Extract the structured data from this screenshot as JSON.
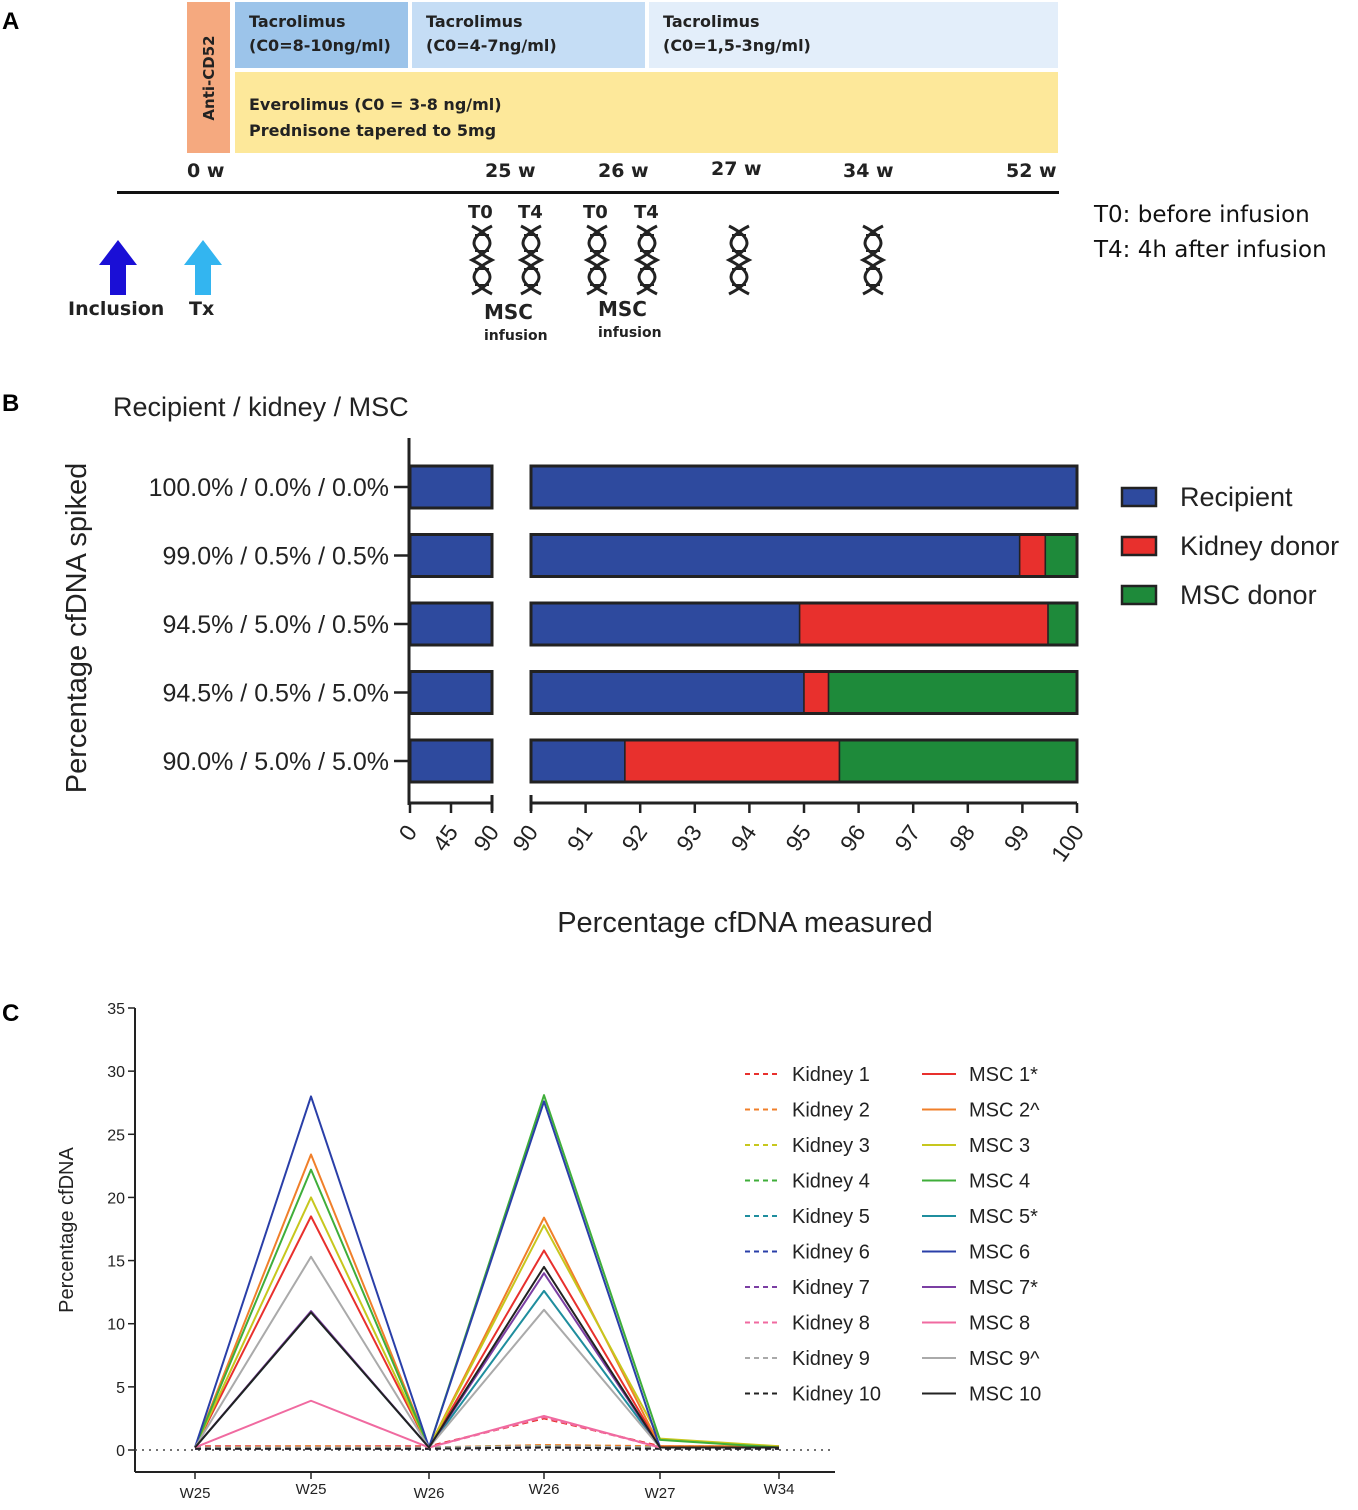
{
  "panels": {
    "a": "A",
    "b": "B",
    "c": "C"
  },
  "timeline": {
    "anti_cd52": "Anti-CD52",
    "tac1_line1": "Tacrolimus",
    "tac1_line2": "(C0=8-10ng/ml)",
    "tac2_line1": "Tacrolimus",
    "tac2_line2": "(C0=4-7ng/ml)",
    "tac3_line1": "Tacrolimus",
    "tac3_line2": "(C0=1,5-3ng/ml)",
    "evero_line1": "Everolimus (C0 = 3-8 ng/ml)",
    "evero_line2": "Prednisone tapered to 5mg",
    "weeks": [
      "0 w",
      "25 w",
      "26 w",
      "27 w",
      "34 w",
      "52 w"
    ],
    "t0": "T0",
    "t4": "T4",
    "msc": "MSC",
    "infusion": "infusion",
    "inclusion": "Inclusion",
    "tx": "Tx",
    "legend_t0": "T0: before infusion",
    "legend_t4": "T4: 4h after infusion",
    "colors": {
      "anti": "#f5a97f",
      "tac1": "#9cc4ea",
      "tac2": "#c5ddf5",
      "tac3": "#e3eefa",
      "evero": "#fde89a",
      "inclusion_arrow": "#1a0fd6",
      "tx_arrow": "#33b5f0"
    }
  },
  "chart_data": [
    {
      "type": "bar",
      "orientation": "horizontal-stacked",
      "header": "Recipient / kidney / MSC",
      "ylabel": "Percentage cfDNA spiked",
      "xlabel": "Percentage cfDNA measured",
      "categories": [
        "100.0% / 0.0% / 0.0%",
        "99.0% / 0.5% / 0.5%",
        "94.5% / 5.0% / 0.5%",
        "94.5% / 0.5% / 5.0%",
        "90.0% / 5.0% / 5.0%"
      ],
      "series": [
        {
          "name": "Recipient",
          "color": "#2e4a9e",
          "values": [
            100.0,
            98.95,
            94.92,
            95.0,
            91.72
          ]
        },
        {
          "name": "Kidney donor",
          "color": "#e8302d",
          "values": [
            0.0,
            0.47,
            4.55,
            0.45,
            3.93
          ]
        },
        {
          "name": "MSC donor",
          "color": "#1e8a3a",
          "values": [
            0.0,
            0.58,
            0.53,
            4.55,
            4.35
          ]
        }
      ],
      "axis_break": {
        "left_range": [
          0,
          90
        ],
        "right_range": [
          90,
          100
        ]
      },
      "left_ticks": [
        "0",
        "45",
        "90"
      ],
      "right_ticks": [
        "90",
        "91",
        "92",
        "93",
        "94",
        "95",
        "96",
        "97",
        "98",
        "99",
        "100"
      ]
    },
    {
      "type": "line",
      "ylabel": "Percentage cfDNA",
      "categories": [
        "W25",
        "W25",
        "W26",
        "W26",
        "W27",
        "W34"
      ],
      "ylim": [
        0,
        35
      ],
      "yticks": [
        "0",
        "5",
        "10",
        "15",
        "20",
        "25",
        "30",
        "35"
      ],
      "series": [
        {
          "name": "Kidney 1",
          "style": "dashed",
          "color": "#e8302d",
          "values": [
            0.3,
            0.3,
            0.3,
            2.5,
            0.3,
            0.3
          ]
        },
        {
          "name": "Kidney 2",
          "style": "dashed",
          "color": "#f07f2a",
          "values": [
            0.2,
            0.3,
            0.2,
            0.4,
            0.3,
            0.3
          ]
        },
        {
          "name": "Kidney 3",
          "style": "dashed",
          "color": "#c7c71e",
          "values": [
            0.2,
            0.2,
            0.2,
            0.3,
            0.2,
            0.2
          ]
        },
        {
          "name": "Kidney 4",
          "style": "dashed",
          "color": "#3fae3a",
          "values": [
            0.2,
            0.2,
            0.2,
            0.3,
            0.2,
            0.2
          ]
        },
        {
          "name": "Kidney 5",
          "style": "dashed",
          "color": "#1f8e9e",
          "values": [
            0.2,
            0.2,
            0.2,
            0.2,
            0.2,
            0.2
          ]
        },
        {
          "name": "Kidney 6",
          "style": "dashed",
          "color": "#2a3fa8",
          "values": [
            0.1,
            0.2,
            0.1,
            0.2,
            0.2,
            0.1
          ]
        },
        {
          "name": "Kidney 7",
          "style": "dashed",
          "color": "#7b3fa3",
          "values": [
            0.1,
            0.1,
            0.1,
            0.2,
            0.1,
            0.1
          ]
        },
        {
          "name": "Kidney 8",
          "style": "dashed",
          "color": "#f06aa0",
          "values": [
            0.2,
            0.2,
            0.2,
            2.6,
            0.2,
            0.2
          ]
        },
        {
          "name": "Kidney 9",
          "style": "dashed",
          "color": "#aaaaaa",
          "values": [
            0.2,
            0.2,
            0.2,
            0.3,
            0.2,
            0.2
          ]
        },
        {
          "name": "Kidney 10",
          "style": "dashed",
          "color": "#222222",
          "values": [
            0.1,
            0.1,
            0.1,
            0.2,
            0.1,
            0.1
          ]
        },
        {
          "name": "MSC 1*",
          "style": "solid",
          "color": "#e8302d",
          "values": [
            0.2,
            18.5,
            0.2,
            15.8,
            0.3,
            0.2
          ]
        },
        {
          "name": "MSC 2^",
          "style": "solid",
          "color": "#f07f2a",
          "values": [
            0.2,
            23.4,
            0.2,
            18.4,
            0.3,
            0.3
          ]
        },
        {
          "name": "MSC 3",
          "style": "solid",
          "color": "#c7c71e",
          "values": [
            0.2,
            20.0,
            0.2,
            17.8,
            0.9,
            0.3
          ]
        },
        {
          "name": "MSC 4",
          "style": "solid",
          "color": "#3fae3a",
          "values": [
            0.2,
            22.2,
            0.2,
            28.1,
            0.8,
            0.2
          ]
        },
        {
          "name": "MSC 5*",
          "style": "solid",
          "color": "#1f8e9e",
          "values": [
            0.2,
            10.9,
            0.2,
            12.6,
            0.2,
            0.2
          ]
        },
        {
          "name": "MSC 6",
          "style": "solid",
          "color": "#2a3fa8",
          "values": [
            0.2,
            28.0,
            0.2,
            27.6,
            0.2,
            0.2
          ]
        },
        {
          "name": "MSC 7*",
          "style": "solid",
          "color": "#7b3fa3",
          "values": [
            0.2,
            11.0,
            0.2,
            14.0,
            0.2,
            0.2
          ]
        },
        {
          "name": "MSC 8",
          "style": "solid",
          "color": "#f06aa0",
          "values": [
            0.2,
            3.9,
            0.2,
            2.7,
            0.2,
            0.2
          ]
        },
        {
          "name": "MSC 9^",
          "style": "solid",
          "color": "#aaaaaa",
          "values": [
            0.2,
            15.3,
            0.2,
            11.1,
            0.2,
            0.2
          ]
        },
        {
          "name": "MSC 10",
          "style": "solid",
          "color": "#222222",
          "values": [
            0.2,
            10.9,
            0.2,
            14.5,
            0.2,
            0.2
          ]
        }
      ]
    }
  ]
}
